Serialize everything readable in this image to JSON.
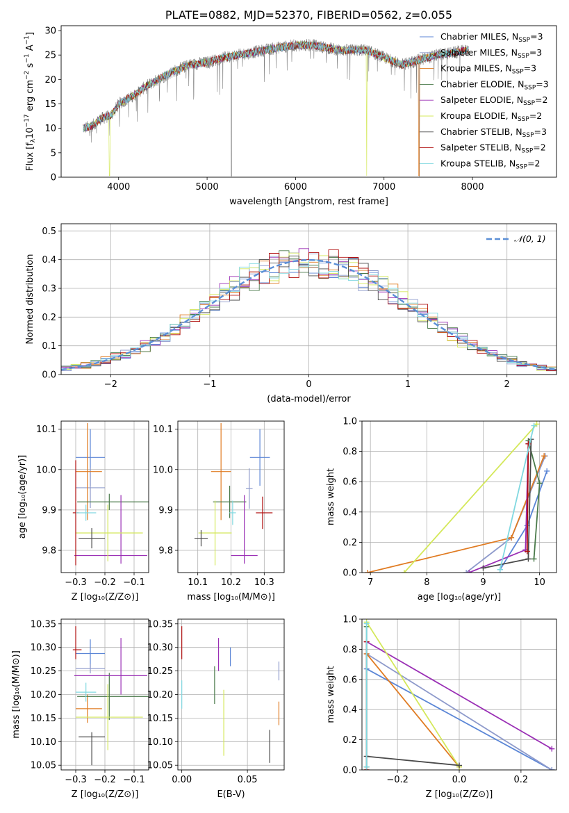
{
  "figure": {
    "title": "PLATE=0882, MJD=52370, FIBERID=0562, z=0.055",
    "models": [
      {
        "name": "Chabrier MILES, Nₛₛₚ=3",
        "label": "Chabrier MILES, N",
        "sub": "SSP",
        "n": "=3",
        "color": "#5b86d6"
      },
      {
        "name": "Salpeter MILES",
        "label": "Salpeter MILES, N",
        "sub": "SSP",
        "n": "=3",
        "color": "#8e9acb"
      },
      {
        "name": "Kroupa MILES",
        "label": "Kroupa MILES, N",
        "sub": "SSP",
        "n": "=3",
        "color": "#e07b22"
      },
      {
        "name": "Chabrier ELODIE",
        "label": "Chabrier ELODIE, N",
        "sub": "SSP",
        "n": "=3",
        "color": "#4a7a4a"
      },
      {
        "name": "Salpeter ELODIE",
        "label": "Salpeter ELODIE, N",
        "sub": "SSP",
        "n": "=2",
        "color": "#9a2fb5"
      },
      {
        "name": "Kroupa ELODIE",
        "label": "Kroupa ELODIE, N",
        "sub": "SSP",
        "n": "=2",
        "color": "#d4e85a"
      },
      {
        "name": "Chabrier STELIB",
        "label": "Chabrier STELIB, N",
        "sub": "SSP",
        "n": "=3",
        "color": "#4a4a4a"
      },
      {
        "name": "Salpeter STELIB",
        "label": "Salpeter STELIB, N",
        "sub": "SSP",
        "n": "=2",
        "color": "#b01010"
      },
      {
        "name": "Kroupa STELIB",
        "label": "Kroupa STELIB, N",
        "sub": "SSP",
        "n": "=2",
        "color": "#80d8e0"
      }
    ]
  },
  "chart_data": [
    {
      "id": "spectrum",
      "type": "line",
      "xlabel": "wavelength [Angstrom, rest frame]",
      "ylabel": "Flux [f",
      "xlim": [
        3350,
        8950
      ],
      "ylim": [
        0,
        31
      ],
      "xticks": [
        4000,
        5000,
        6000,
        7000,
        8000
      ],
      "yticks": [
        0,
        5,
        10,
        15,
        20,
        25,
        30
      ],
      "grid": false,
      "legend": "right",
      "continuum": [
        [
          3600,
          10
        ],
        [
          3700,
          10.5
        ],
        [
          3800,
          12
        ],
        [
          3900,
          12.5
        ],
        [
          3950,
          13.5
        ],
        [
          4000,
          15
        ],
        [
          4100,
          16
        ],
        [
          4200,
          17
        ],
        [
          4300,
          18.5
        ],
        [
          4400,
          19.5
        ],
        [
          4600,
          21.5
        ],
        [
          4800,
          23
        ],
        [
          5000,
          23.5
        ],
        [
          5200,
          24.5
        ],
        [
          5500,
          25.5
        ],
        [
          5800,
          26.5
        ],
        [
          6000,
          27
        ],
        [
          6200,
          27
        ],
        [
          6500,
          26
        ],
        [
          6800,
          26
        ],
        [
          7000,
          24.5
        ],
        [
          7200,
          23
        ],
        [
          7400,
          24
        ],
        [
          7600,
          25
        ],
        [
          7800,
          25.5
        ],
        [
          7950,
          26
        ]
      ]
    },
    {
      "id": "residuals",
      "type": "line",
      "xlabel": "(data-model)/error",
      "ylabel": "Normed distribution",
      "xlim": [
        -2.5,
        2.5
      ],
      "ylim": [
        0,
        0.525
      ],
      "xticks": [
        -2,
        -1,
        0,
        1,
        2
      ],
      "yticks": [
        0.0,
        0.1,
        0.2,
        0.3,
        0.4,
        0.5
      ],
      "grid": true,
      "legend": "top-right",
      "gaussian_label": "𝒩(0, 1)",
      "gaussian_color": "#5b8fd6"
    },
    {
      "id": "age-Z",
      "type": "scatter",
      "xlabel": "Z [log₁₀(Z/Z⊙)]",
      "ylabel": "age  [log₁₀(age/yr)]",
      "xlim": [
        -0.35,
        -0.05
      ],
      "ylim": [
        9.745,
        10.12
      ],
      "xticks": [
        -0.3,
        -0.2,
        -0.1
      ],
      "yticks": [
        9.8,
        9.9,
        10.0,
        10.1
      ],
      "grid": true,
      "points": [
        {
          "x": -0.25,
          "y": 10.03,
          "xerr": [
            0.05,
            0.05
          ],
          "yerr": [
            0.07,
            0.07
          ],
          "c": 0
        },
        {
          "x": -0.25,
          "y": 9.955,
          "xerr": [
            0.05,
            0.05
          ],
          "yerr": [
            0.05,
            0.05
          ],
          "c": 1
        },
        {
          "x": -0.26,
          "y": 9.995,
          "xerr": [
            0.04,
            0.05
          ],
          "yerr": [
            0.12,
            0.12
          ],
          "c": 2
        },
        {
          "x": -0.185,
          "y": 9.92,
          "xerr": [
            0.11,
            0.14
          ],
          "yerr": [
            0.02,
            0.02
          ],
          "c": 3
        },
        {
          "x": -0.145,
          "y": 9.787,
          "xerr": [
            0.16,
            0.09
          ],
          "yerr": [
            0.02,
            0.15
          ],
          "c": 4
        },
        {
          "x": -0.19,
          "y": 9.843,
          "xerr": [
            0.11,
            0.12
          ],
          "yerr": [
            0.07,
            0.07
          ],
          "c": 5
        },
        {
          "x": -0.245,
          "y": 9.83,
          "xerr": [
            0.045,
            0.045
          ],
          "yerr": [
            0.025,
            0.025
          ],
          "c": 6
        },
        {
          "x": -0.3,
          "y": 9.893,
          "xerr": [
            0.01,
            0.01
          ],
          "yerr": [
            0.13,
            0.13
          ],
          "c": 7
        },
        {
          "x": -0.265,
          "y": 9.893,
          "xerr": [
            0.035,
            0.035
          ],
          "yerr": [
            0.02,
            0.02
          ],
          "c": 8
        }
      ]
    },
    {
      "id": "age-mass",
      "type": "scatter",
      "xlabel": "mass [log₁₀(M/M⊙)]",
      "ylabel": "",
      "xlim": [
        10.04,
        10.36
      ],
      "ylim": [
        9.745,
        10.12
      ],
      "xticks": [
        10.1,
        10.2,
        10.3
      ],
      "yticks": [
        9.8,
        9.9,
        10.0,
        10.1
      ],
      "grid": true,
      "points": [
        {
          "x": 10.287,
          "y": 10.03,
          "xerr": [
            0.03,
            0.03
          ],
          "yerr": [
            0.07,
            0.07
          ],
          "c": 0
        },
        {
          "x": 10.255,
          "y": 9.953,
          "xerr": [
            0.01,
            0.01
          ],
          "yerr": [
            0.05,
            0.05
          ],
          "c": 1
        },
        {
          "x": 10.17,
          "y": 9.995,
          "xerr": [
            0.03,
            0.03
          ],
          "yerr": [
            0.12,
            0.12
          ],
          "c": 2
        },
        {
          "x": 10.196,
          "y": 9.92,
          "xerr": [
            0.05,
            0.05
          ],
          "yerr": [
            0.04,
            0.04
          ],
          "c": 3
        },
        {
          "x": 10.24,
          "y": 9.787,
          "xerr": [
            0.04,
            0.04
          ],
          "yerr": [
            0.02,
            0.15
          ],
          "c": 4
        },
        {
          "x": 10.152,
          "y": 9.843,
          "xerr": [
            0.05,
            0.05
          ],
          "yerr": [
            0.08,
            0.08
          ],
          "c": 5
        },
        {
          "x": 10.11,
          "y": 9.83,
          "xerr": [
            0.02,
            0.02
          ],
          "yerr": [
            0.02,
            0.02
          ],
          "c": 6
        },
        {
          "x": 10.295,
          "y": 9.893,
          "xerr": [
            0.02,
            0.03
          ],
          "yerr": [
            0.04,
            0.04
          ],
          "c": 7
        },
        {
          "x": 10.205,
          "y": 9.893,
          "xerr": [
            0.01,
            0.01
          ],
          "yerr": [
            0.03,
            0.03
          ],
          "c": 8
        }
      ]
    },
    {
      "id": "weight-age",
      "type": "line",
      "xlabel": "age  [log₁₀(age/yr)]",
      "ylabel": "mass weight",
      "xlim": [
        6.85,
        10.3
      ],
      "ylim": [
        0,
        1
      ],
      "xticks": [
        7,
        8,
        9,
        10
      ],
      "yticks": [
        0.0,
        0.2,
        0.4,
        0.6,
        0.8,
        1.0
      ],
      "grid": true,
      "series": [
        {
          "c": 0,
          "x": [
            9.3,
            9.78,
            10.13
          ],
          "y": [
            0.02,
            0.31,
            0.67
          ]
        },
        {
          "c": 1,
          "x": [
            8.7,
            9.5,
            10.1
          ],
          "y": [
            0.0,
            0.23,
            0.77
          ]
        },
        {
          "c": 2,
          "x": [
            6.95,
            9.5,
            10.08
          ],
          "y": [
            0.0,
            0.23,
            0.77
          ]
        },
        {
          "c": 3,
          "x": [
            9.9,
            10.0,
            9.8
          ],
          "y": [
            0.09,
            0.59,
            0.87
          ]
        },
        {
          "c": 4,
          "x": [
            8.75,
            9.75,
            9.8
          ],
          "y": [
            0.0,
            0.15,
            0.85
          ]
        },
        {
          "c": 5,
          "x": [
            7.6,
            9.95
          ],
          "y": [
            0.0,
            0.98
          ]
        },
        {
          "c": 6,
          "x": [
            9.0,
            9.8,
            9.85
          ],
          "y": [
            0.03,
            0.09,
            0.88
          ]
        },
        {
          "c": 7,
          "x": [
            9.78,
            9.8
          ],
          "y": [
            0.14,
            0.85
          ]
        },
        {
          "c": 8,
          "x": [
            9.3,
            9.9
          ],
          "y": [
            0.02,
            0.97
          ]
        }
      ]
    },
    {
      "id": "mass-Z",
      "type": "scatter",
      "xlabel": "Z [log₁₀(Z/Z⊙)]",
      "ylabel": "mass [log₁₀(M/M⊙)]",
      "xlim": [
        -0.35,
        -0.05
      ],
      "ylim": [
        10.04,
        10.36
      ],
      "xticks": [
        -0.3,
        -0.2,
        -0.1
      ],
      "yticks": [
        10.05,
        10.1,
        10.15,
        10.2,
        10.25,
        10.3,
        10.35
      ],
      "grid": true,
      "points": [
        {
          "x": -0.25,
          "y": 10.287,
          "xerr": [
            0.05,
            0.05
          ],
          "yerr": [
            0.03,
            0.03
          ],
          "c": 0
        },
        {
          "x": -0.25,
          "y": 10.255,
          "xerr": [
            0.05,
            0.05
          ],
          "yerr": [
            0.01,
            0.01
          ],
          "c": 1
        },
        {
          "x": -0.26,
          "y": 10.17,
          "xerr": [
            0.04,
            0.05
          ],
          "yerr": [
            0.03,
            0.03
          ],
          "c": 2
        },
        {
          "x": -0.185,
          "y": 10.196,
          "xerr": [
            0.11,
            0.14
          ],
          "yerr": [
            0.05,
            0.05
          ],
          "c": 3
        },
        {
          "x": -0.145,
          "y": 10.24,
          "xerr": [
            0.16,
            0.09
          ],
          "yerr": [
            0.04,
            0.08
          ],
          "c": 4
        },
        {
          "x": -0.19,
          "y": 10.152,
          "xerr": [
            0.11,
            0.12
          ],
          "yerr": [
            0.07,
            0.07
          ],
          "c": 5
        },
        {
          "x": -0.245,
          "y": 10.11,
          "xerr": [
            0.045,
            0.045
          ],
          "yerr": [
            0.06,
            0.01
          ],
          "c": 6
        },
        {
          "x": -0.3,
          "y": 10.295,
          "xerr": [
            0.01,
            0.02
          ],
          "yerr": [
            0.02,
            0.05
          ],
          "c": 7
        },
        {
          "x": -0.265,
          "y": 10.205,
          "xerr": [
            0.035,
            0.035
          ],
          "yerr": [
            0.02,
            0.02
          ],
          "c": 8
        }
      ]
    },
    {
      "id": "mass-ebv",
      "type": "scatter",
      "xlabel": "E(B-V)",
      "ylabel": "",
      "xlim": [
        -0.003,
        0.078
      ],
      "ylim": [
        10.04,
        10.36
      ],
      "xticks": [
        0.0,
        0.05
      ],
      "yticks": [
        10.05,
        10.1,
        10.15,
        10.2,
        10.25,
        10.3,
        10.35
      ],
      "grid": true,
      "points": [
        {
          "x": 0.037,
          "y": 10.28,
          "yerr": [
            0.02,
            0.02
          ],
          "c": 0
        },
        {
          "x": 0.074,
          "y": 10.25,
          "yerr": [
            0.02,
            0.02
          ],
          "c": 1
        },
        {
          "x": 0.074,
          "y": 10.16,
          "yerr": [
            0.025,
            0.025
          ],
          "c": 2
        },
        {
          "x": 0.025,
          "y": 10.22,
          "yerr": [
            0.04,
            0.04
          ],
          "c": 3
        },
        {
          "x": 0.028,
          "y": 10.285,
          "yerr": [
            0.035,
            0.035
          ],
          "c": 4
        },
        {
          "x": 0.032,
          "y": 10.14,
          "yerr": [
            0.07,
            0.07
          ],
          "c": 5
        },
        {
          "x": 0.067,
          "y": 10.09,
          "yerr": [
            0.035,
            0.035
          ],
          "c": 6
        },
        {
          "x": 0.0,
          "y": 10.31,
          "yerr": [
            0.035,
            0.035
          ],
          "c": 7
        },
        {
          "x": 0.0,
          "y": 10.2,
          "yerr": [
            0.03,
            0.03
          ],
          "c": 8
        }
      ]
    },
    {
      "id": "weight-Z",
      "type": "line",
      "xlabel": "Z [log₁₀(Z/Z⊙)]",
      "ylabel": "mass weight",
      "xlim": [
        -0.315,
        0.315
      ],
      "ylim": [
        0,
        1
      ],
      "xticks": [
        -0.2,
        0.0,
        0.2
      ],
      "yticks": [
        0.0,
        0.2,
        0.4,
        0.6,
        0.8,
        1.0
      ],
      "grid": true,
      "series": [
        {
          "c": 0,
          "x": [
            -0.3,
            0.3
          ],
          "y": [
            0.67,
            0.0
          ]
        },
        {
          "c": 1,
          "x": [
            -0.3,
            0.3
          ],
          "y": [
            0.77,
            0.0
          ]
        },
        {
          "c": 2,
          "x": [
            -0.3,
            0.0
          ],
          "y": [
            0.77,
            0.02
          ]
        },
        {
          "c": 3,
          "x": [
            -0.3,
            -0.3
          ],
          "y": [
            0.02,
            0.95
          ]
        },
        {
          "c": 4,
          "x": [
            -0.3,
            0.3
          ],
          "y": [
            0.85,
            0.14
          ]
        },
        {
          "c": 5,
          "x": [
            -0.3,
            0.0
          ],
          "y": [
            0.98,
            0.02
          ]
        },
        {
          "c": 6,
          "x": [
            -0.3,
            0.0
          ],
          "y": [
            0.09,
            0.03
          ]
        },
        {
          "c": 7,
          "x": [
            -0.3,
            -0.3
          ],
          "y": [
            0.0,
            0.85
          ]
        },
        {
          "c": 8,
          "x": [
            -0.3,
            -0.3
          ],
          "y": [
            0.02,
            0.97
          ]
        }
      ]
    }
  ]
}
